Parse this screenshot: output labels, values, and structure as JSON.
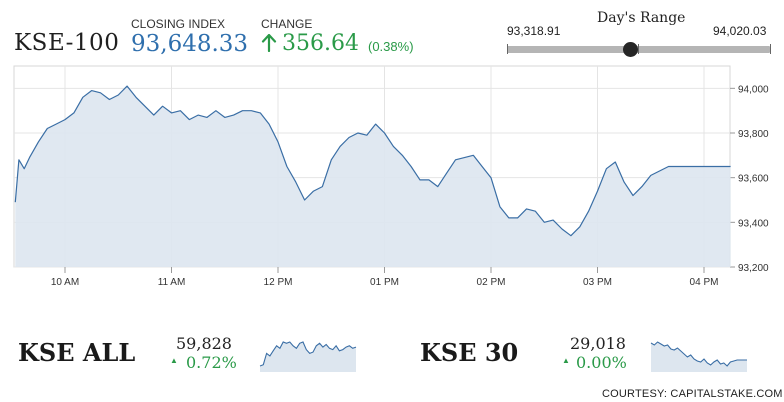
{
  "header": {
    "index_name": "KSE-100",
    "closing_label": "CLOSING INDEX",
    "closing_value": "93,648.33",
    "change_label": "CHANGE",
    "change_value": "356.64",
    "change_pct": "(0.38%)",
    "change_arrow_icon": "arrow-up-icon",
    "up_color": "#2a9a48",
    "value_color": "#2f6fad"
  },
  "days_range": {
    "title": "Day's Range",
    "low_label": "93,318.91",
    "high_label": "94,020.03",
    "low": 93318.91,
    "high": 94020.03,
    "current": 93648.33
  },
  "chart_data": [
    {
      "type": "area",
      "title": "",
      "xlabel": "",
      "ylabel": "",
      "series": [
        {
          "x": [
            "09:32",
            "09:34",
            "09:37",
            "09:40",
            "09:45",
            "09:50",
            "09:55",
            "10:00",
            "10:05",
            "10:10",
            "10:15",
            "10:20",
            "10:25",
            "10:30",
            "10:35",
            "10:40",
            "10:45",
            "10:50",
            "10:55",
            "11:00",
            "11:05",
            "11:10",
            "11:15",
            "11:20",
            "11:25",
            "11:30",
            "11:35",
            "11:40",
            "11:45",
            "11:50",
            "11:55",
            "12:00",
            "12:05",
            "12:10",
            "12:15",
            "12:20",
            "12:25",
            "12:30",
            "12:35",
            "12:40",
            "12:45",
            "12:50",
            "12:55",
            "13:00",
            "13:05",
            "13:10",
            "13:15",
            "13:20",
            "13:25",
            "13:30",
            "13:35",
            "13:40",
            "13:45",
            "13:50",
            "13:55",
            "14:00",
            "14:05",
            "14:10",
            "14:15",
            "14:20",
            "14:25",
            "14:30",
            "14:35",
            "14:40",
            "14:45",
            "14:50",
            "14:55",
            "15:00",
            "15:05",
            "15:10",
            "15:15",
            "15:20",
            "15:25",
            "15:30",
            "15:40",
            "15:50",
            "16:00",
            "16:10",
            "16:15"
          ],
          "values": [
            93490,
            93680,
            93640,
            93690,
            93760,
            93820,
            93840,
            93860,
            93890,
            93960,
            93990,
            93980,
            93950,
            93970,
            94010,
            93960,
            93920,
            93880,
            93920,
            93890,
            93900,
            93860,
            93880,
            93870,
            93900,
            93870,
            93880,
            93900,
            93900,
            93890,
            93840,
            93760,
            93650,
            93580,
            93500,
            93540,
            93560,
            93680,
            93740,
            93780,
            93800,
            93790,
            93840,
            93800,
            93740,
            93700,
            93650,
            93590,
            93590,
            93560,
            93620,
            93680,
            93690,
            93700,
            93650,
            93600,
            93470,
            93420,
            93420,
            93460,
            93450,
            93400,
            93410,
            93370,
            93340,
            93380,
            93450,
            93540,
            93640,
            93670,
            93580,
            93520,
            93560,
            93610,
            93650,
            93650,
            93650,
            93650,
            93650
          ]
        }
      ],
      "ylim": [
        93200,
        94100
      ],
      "y_ticks": [
        "94,000",
        "93,800",
        "93,600",
        "93,400",
        "93,200"
      ],
      "x_ticks": [
        "10 AM",
        "11 AM",
        "12 PM",
        "01 PM",
        "02 PM",
        "03 PM",
        "04 PM"
      ],
      "grid": true,
      "line_color": "#3a6ea5",
      "fill_color": "#dde6ef"
    },
    {
      "type": "area",
      "title": "KSE ALL",
      "series": [
        {
          "values": [
            59600,
            59610,
            59700,
            59680,
            59720,
            59760,
            59740,
            59790,
            59780,
            59790,
            59760,
            59740,
            59780,
            59790,
            59730,
            59700,
            59710,
            59760,
            59780,
            59750,
            59770,
            59740,
            59730,
            59760,
            59720,
            59730,
            59750,
            59760,
            59740,
            59750
          ]
        }
      ],
      "line_color": "#3a6ea5",
      "fill_color": "#dde6ef"
    },
    {
      "type": "area",
      "title": "KSE 30",
      "series": [
        {
          "values": [
            29180,
            29160,
            29190,
            29170,
            29150,
            29160,
            29120,
            29110,
            29130,
            29100,
            29070,
            29040,
            29060,
            29020,
            29000,
            28990,
            29020,
            28980,
            28960,
            28990,
            29010,
            28970,
            28980,
            28950,
            28990,
            29000,
            29010,
            29010,
            29010,
            29010
          ]
        }
      ],
      "line_color": "#3a6ea5",
      "fill_color": "#dde6ef"
    }
  ],
  "indices": [
    {
      "name": "KSE ALL",
      "value": "59,828",
      "pct": "0.72%",
      "arrow_icon": "triangle-up-icon"
    },
    {
      "name": "KSE 30",
      "value": "29,018",
      "pct": "0.00%",
      "arrow_icon": "triangle-up-icon"
    }
  ],
  "footer": {
    "courtesy": "COURTESY: CAPITALSTAKE.COM"
  }
}
